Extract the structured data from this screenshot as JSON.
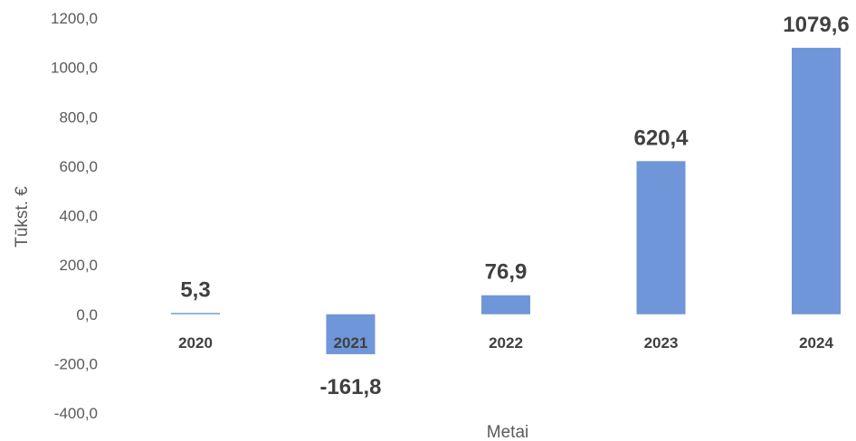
{
  "chart_data": {
    "type": "bar",
    "categories": [
      "2020",
      "2021",
      "2022",
      "2023",
      "2024"
    ],
    "values": [
      5.3,
      -161.8,
      76.9,
      620.4,
      1079.6
    ],
    "value_labels": [
      "5,3",
      "-161,8",
      "76,9",
      "620,4",
      "1079,6"
    ],
    "xlabel": "Metai",
    "ylabel": "Tūkst. €",
    "ylim": [
      -400,
      1200
    ],
    "yticks": [
      -400,
      -200,
      0,
      200,
      400,
      600,
      800,
      1000,
      1200
    ],
    "ytick_labels": [
      "-400,0",
      "-200,0",
      "0,0",
      "200,0",
      "400,0",
      "600,0",
      "800,0",
      "1000,0",
      "1200,0"
    ],
    "grid": false,
    "legend": "none",
    "bar_color": "#6f96d8"
  }
}
